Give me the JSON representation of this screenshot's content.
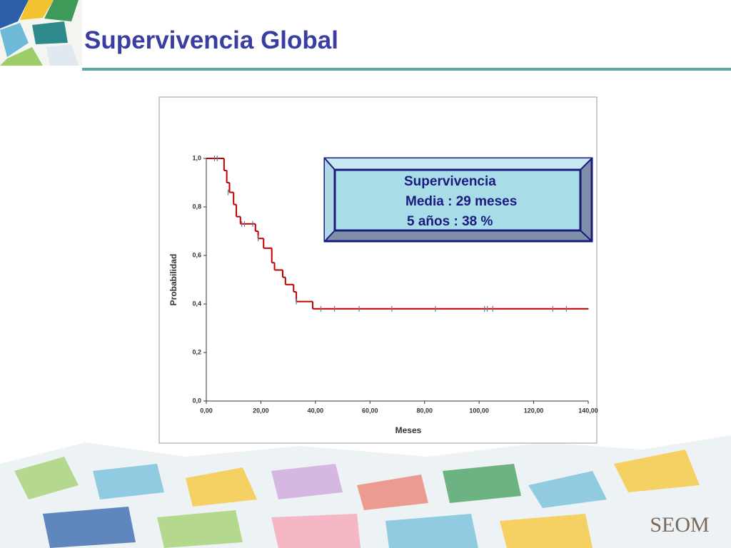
{
  "title": "Supervivencia Global",
  "logo": "SEOM",
  "chart_data": {
    "type": "line",
    "drawstyle": "steps-post",
    "color": "#c00000",
    "xlabel": "Meses",
    "ylabel": "Probabilidad",
    "x": [
      0,
      6.5,
      7.5,
      8.5,
      10,
      11,
      12.5,
      18,
      19,
      21,
      24,
      25,
      28,
      29,
      32,
      33,
      39,
      140
    ],
    "values": [
      1.0,
      0.95,
      0.9,
      0.86,
      0.81,
      0.76,
      0.73,
      0.7,
      0.67,
      0.63,
      0.57,
      0.54,
      0.51,
      0.48,
      0.45,
      0.41,
      0.38,
      0.38
    ],
    "censored": {
      "color": "#6a7aa0",
      "x": [
        3,
        4,
        8,
        13,
        14,
        17,
        19,
        33,
        42,
        47,
        56,
        68,
        84,
        102,
        103,
        105,
        127,
        132
      ],
      "values": [
        1.0,
        1.0,
        0.86,
        0.73,
        0.73,
        0.73,
        0.67,
        0.41,
        0.38,
        0.38,
        0.38,
        0.38,
        0.38,
        0.38,
        0.38,
        0.38,
        0.38,
        0.38
      ]
    },
    "xlim": [
      0,
      140
    ],
    "ylim": [
      0,
      1
    ],
    "xticks": [
      {
        "value": 0,
        "label": "0,00"
      },
      {
        "value": 20,
        "label": "20,00"
      },
      {
        "value": 40,
        "label": "40,00"
      },
      {
        "value": 60,
        "label": "60,00"
      },
      {
        "value": 80,
        "label": "80,00"
      },
      {
        "value": 100,
        "label": "100,00"
      },
      {
        "value": 120,
        "label": "120,00"
      },
      {
        "value": 140,
        "label": "140,00"
      }
    ],
    "yticks": [
      {
        "value": 0,
        "label": "0,0"
      },
      {
        "value": 0.2,
        "label": "0,2"
      },
      {
        "value": 0.4,
        "label": "0,4"
      },
      {
        "value": 0.6,
        "label": "0,6"
      },
      {
        "value": 0.8,
        "label": "0,8"
      },
      {
        "value": 1,
        "label": "1,0"
      }
    ],
    "annotation": [
      "Supervivencia",
      "Media : 29 meses",
      "5 años : 38 %"
    ]
  }
}
